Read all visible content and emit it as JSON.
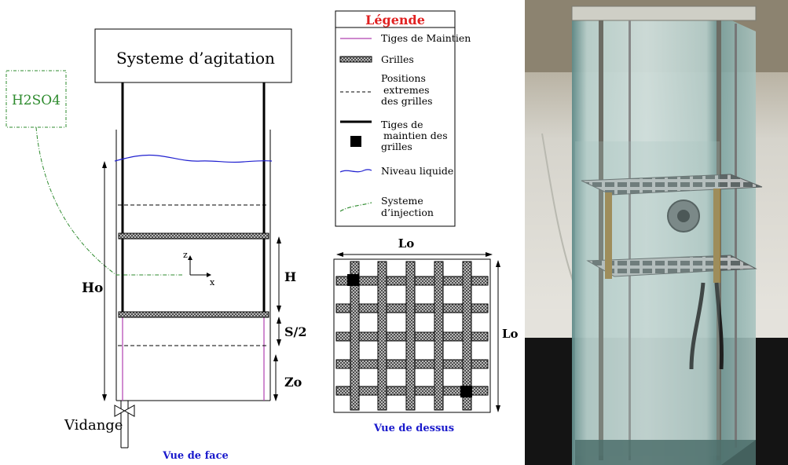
{
  "front_view": {
    "agitation_label": "Systeme d’agitation",
    "injection_label": "H2SO4",
    "dim_ho": "Ho",
    "dim_h": "H",
    "dim_s2": "S/2",
    "dim_zo": "Zo",
    "axis_z": "z",
    "axis_x": "x",
    "drain_label": "Vidange",
    "caption": "Vue de face"
  },
  "legend": {
    "title": "Légende",
    "items": [
      {
        "icon": "purple-line-icon",
        "lines": [
          "Tiges de Maintien"
        ]
      },
      {
        "icon": "grid-hatch-icon",
        "lines": [
          "Grilles"
        ]
      },
      {
        "icon": "dashed-line-icon",
        "lines": [
          "Positions",
          "extremes",
          "des grilles"
        ]
      },
      {
        "icon": "thick-rod-square-icon",
        "lines": [
          "Tiges de",
          "maintien des",
          "grilles"
        ]
      },
      {
        "icon": "wavy-blue-line-icon",
        "lines": [
          "Niveau liquide"
        ]
      },
      {
        "icon": "green-dashdot-line-icon",
        "lines": [
          "Systeme",
          "d’injection"
        ]
      }
    ]
  },
  "top_view": {
    "dim_width": "Lo",
    "dim_height": "Lo",
    "caption": "Vue de dessus"
  },
  "colors": {
    "injection_green": "#2e8b2e",
    "liquid_blue": "#2020d0",
    "rod_purple": "#b040b0",
    "caption_blue": "#1a1acc",
    "legend_title_red": "#e02020"
  }
}
